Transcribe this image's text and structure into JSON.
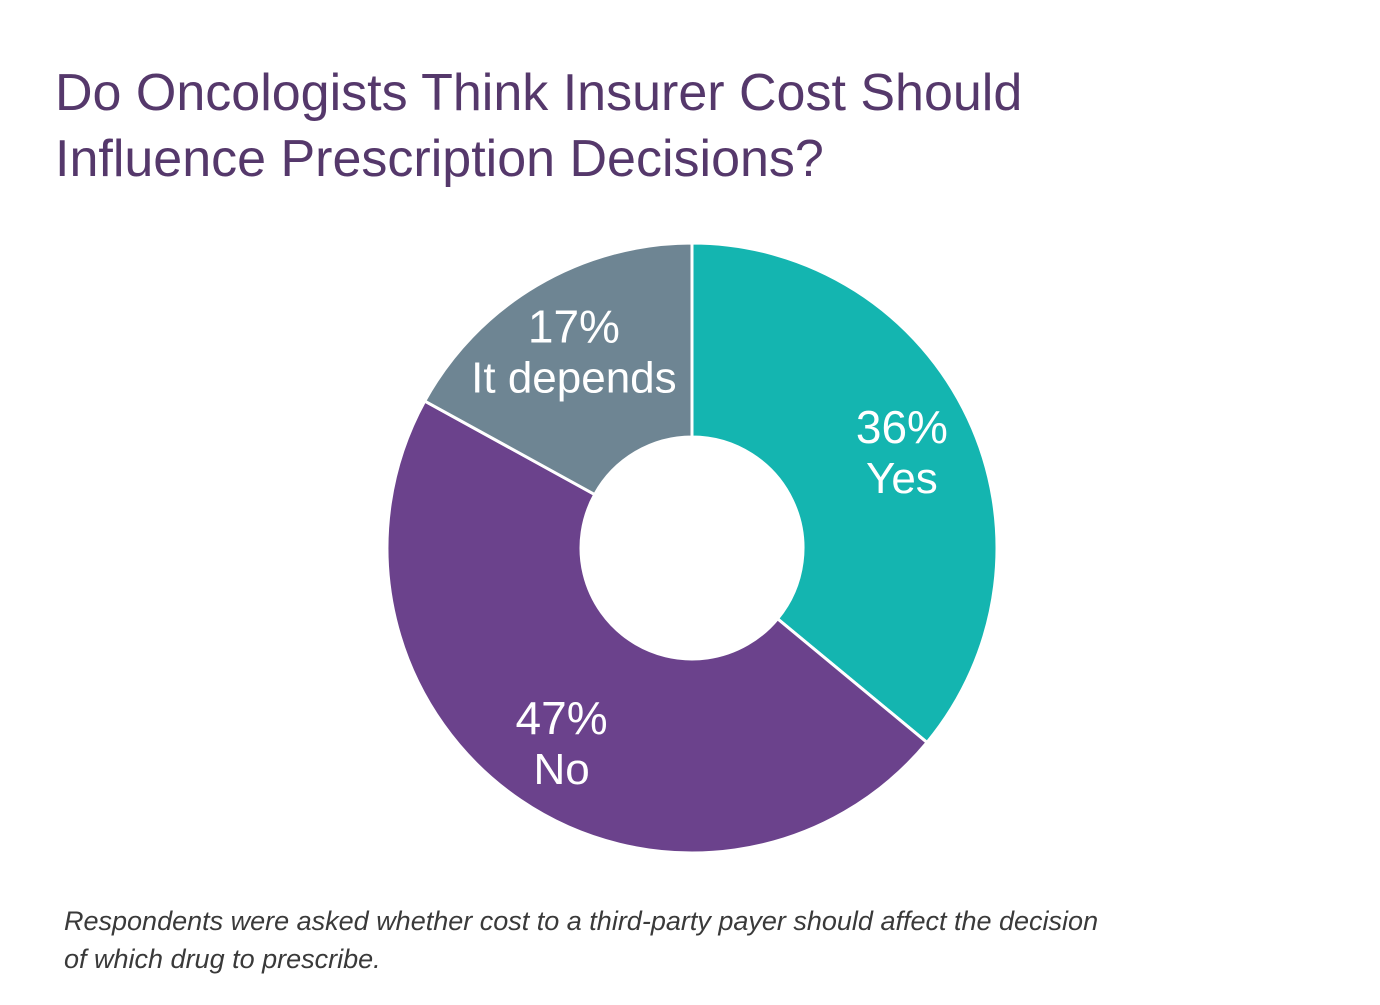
{
  "title": {
    "line1": "Do Oncologists Think Insurer Cost Should",
    "line2": "Influence Prescription Decisions?"
  },
  "note": {
    "line1": "Respondents were asked whether cost to a third-party payer should affect the decision",
    "line2": "of which drug to prescribe."
  },
  "chart_data": {
    "type": "pie",
    "variant": "donut",
    "slices": [
      {
        "label": "Yes",
        "value": 36,
        "value_label": "36%",
        "color": "#14b5b0"
      },
      {
        "label": "No",
        "value": 47,
        "value_label": "47%",
        "color": "#6b428c"
      },
      {
        "label": "It depends",
        "value": 17,
        "value_label": "17%",
        "color": "#6e8593"
      }
    ],
    "start": "12 o'clock",
    "direction": "clockwise",
    "legend": "none",
    "labels": "inside slices"
  }
}
